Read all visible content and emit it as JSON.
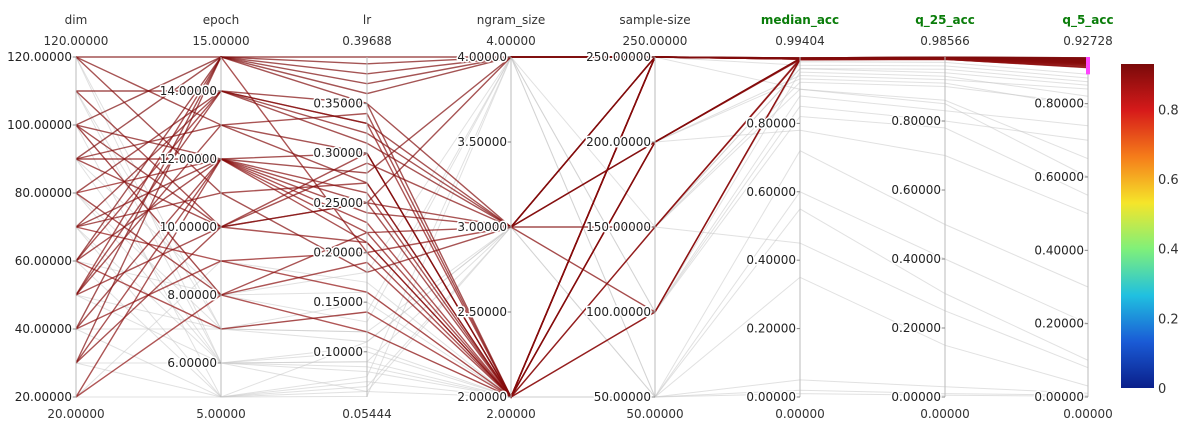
{
  "chart_data": {
    "type": "parallel_coordinates",
    "dimensions": [
      {
        "label": "dim",
        "highlight": false,
        "range_min": "20.00000",
        "range_max": "120.00000",
        "min": 20,
        "max": 120,
        "ticks": [
          {
            "v": 20,
            "t": "20.00000"
          },
          {
            "v": 40,
            "t": "40.00000"
          },
          {
            "v": 60,
            "t": "60.00000"
          },
          {
            "v": 80,
            "t": "80.00000"
          },
          {
            "v": 100,
            "t": "100.00000"
          },
          {
            "v": 120,
            "t": "120.00000"
          }
        ],
        "tick_side": "left"
      },
      {
        "label": "epoch",
        "highlight": false,
        "range_min": "5.00000",
        "range_max": "15.00000",
        "min": 5,
        "max": 15,
        "ticks": [
          {
            "v": 6,
            "t": "6.00000"
          },
          {
            "v": 8,
            "t": "8.00000"
          },
          {
            "v": 10,
            "t": "10.00000"
          },
          {
            "v": 12,
            "t": "12.00000"
          },
          {
            "v": 14,
            "t": "14.00000"
          }
        ],
        "tick_side": "left"
      },
      {
        "label": "lr",
        "highlight": false,
        "range_min": "0.05444",
        "range_max": "0.39688",
        "min": 0.05444,
        "max": 0.39688,
        "ticks": [
          {
            "v": 0.1,
            "t": "0.10000"
          },
          {
            "v": 0.15,
            "t": "0.15000"
          },
          {
            "v": 0.2,
            "t": "0.20000"
          },
          {
            "v": 0.25,
            "t": "0.25000"
          },
          {
            "v": 0.3,
            "t": "0.30000"
          },
          {
            "v": 0.35,
            "t": "0.35000"
          }
        ],
        "tick_side": "left"
      },
      {
        "label": "ngram_size",
        "highlight": false,
        "range_min": "2.00000",
        "range_max": "4.00000",
        "min": 2,
        "max": 4,
        "ticks": [
          {
            "v": 2,
            "t": "2.00000"
          },
          {
            "v": 2.5,
            "t": "2.50000"
          },
          {
            "v": 3,
            "t": "3.00000"
          },
          {
            "v": 3.5,
            "t": "3.50000"
          },
          {
            "v": 4,
            "t": "4.00000"
          }
        ],
        "tick_side": "left"
      },
      {
        "label": "sample-size",
        "highlight": false,
        "range_min": "50.00000",
        "range_max": "250.00000",
        "min": 50,
        "max": 250,
        "ticks": [
          {
            "v": 50,
            "t": "50.00000"
          },
          {
            "v": 100,
            "t": "100.00000"
          },
          {
            "v": 150,
            "t": "150.00000"
          },
          {
            "v": 200,
            "t": "200.00000"
          },
          {
            "v": 250,
            "t": "250.00000"
          }
        ],
        "tick_side": "left"
      },
      {
        "label": "median_acc",
        "highlight": true,
        "range_min": "0.00000",
        "range_max": "0.99404",
        "min": 0,
        "max": 0.99404,
        "ticks": [
          {
            "v": 0,
            "t": "0.00000"
          },
          {
            "v": 0.2,
            "t": "0.20000"
          },
          {
            "v": 0.4,
            "t": "0.40000"
          },
          {
            "v": 0.6,
            "t": "0.60000"
          },
          {
            "v": 0.8,
            "t": "0.80000"
          }
        ],
        "tick_side": "left"
      },
      {
        "label": "q_25_acc",
        "highlight": true,
        "range_min": "0.00000",
        "range_max": "0.98566",
        "min": 0,
        "max": 0.98566,
        "ticks": [
          {
            "v": 0,
            "t": "0.00000"
          },
          {
            "v": 0.2,
            "t": "0.20000"
          },
          {
            "v": 0.4,
            "t": "0.40000"
          },
          {
            "v": 0.6,
            "t": "0.60000"
          },
          {
            "v": 0.8,
            "t": "0.80000"
          }
        ],
        "tick_side": "left"
      },
      {
        "label": "q_5_acc",
        "highlight": true,
        "range_min": "0.00000",
        "range_max": "0.92728",
        "min": 0,
        "max": 0.92728,
        "ticks": [
          {
            "v": 0,
            "t": "0.00000"
          },
          {
            "v": 0.2,
            "t": "0.20000"
          },
          {
            "v": 0.4,
            "t": "0.40000"
          },
          {
            "v": 0.6,
            "t": "0.60000"
          },
          {
            "v": 0.8,
            "t": "0.80000"
          }
        ],
        "tick_side": "left"
      }
    ],
    "constraint": {
      "dimension": "q_5_acc",
      "range": [
        0.88,
        0.92728
      ],
      "color": "#ff44ff"
    },
    "colorscale": {
      "range": [
        0,
        0.93
      ],
      "ticks": [
        {
          "v": 0,
          "t": "0"
        },
        {
          "v": 0.2,
          "t": "0.2"
        },
        {
          "v": 0.4,
          "t": "0.4"
        },
        {
          "v": 0.6,
          "t": "0.6"
        },
        {
          "v": 0.8,
          "t": "0.8"
        }
      ],
      "stops": [
        "#0a1f8a",
        "#1a5bd6",
        "#20c0e0",
        "#7ff07a",
        "#f5e52a",
        "#f57c1a",
        "#d61a1a",
        "#7a0a0a"
      ]
    },
    "unselected_color": "#c8c8c8",
    "lines_selected": [
      [
        120,
        15,
        0.3969,
        4,
        250,
        0.99,
        0.985,
        0.925
      ],
      [
        110,
        14,
        0.35,
        3,
        250,
        0.99,
        0.984,
        0.92
      ],
      [
        100,
        12,
        0.3,
        2,
        250,
        0.989,
        0.983,
        0.918
      ],
      [
        90,
        10,
        0.25,
        2,
        200,
        0.988,
        0.982,
        0.915
      ],
      [
        80,
        8,
        0.22,
        3,
        150,
        0.989,
        0.982,
        0.912
      ],
      [
        70,
        12,
        0.28,
        4,
        250,
        0.99,
        0.984,
        0.921
      ],
      [
        60,
        14,
        0.33,
        2,
        100,
        0.987,
        0.98,
        0.905
      ],
      [
        50,
        15,
        0.2,
        2,
        250,
        0.988,
        0.981,
        0.91
      ],
      [
        40,
        12,
        0.25,
        3,
        200,
        0.989,
        0.983,
        0.916
      ],
      [
        30,
        10,
        0.3,
        2,
        250,
        0.988,
        0.982,
        0.913
      ],
      [
        20,
        8,
        0.12,
        2,
        150,
        0.986,
        0.979,
        0.9
      ],
      [
        120,
        11,
        0.18,
        3,
        250,
        0.99,
        0.984,
        0.92
      ],
      [
        100,
        15,
        0.36,
        4,
        250,
        0.991,
        0.985,
        0.924
      ],
      [
        90,
        13,
        0.27,
        2,
        200,
        0.989,
        0.983,
        0.917
      ],
      [
        80,
        14,
        0.32,
        3,
        250,
        0.99,
        0.984,
        0.919
      ],
      [
        70,
        9,
        0.16,
        2,
        100,
        0.986,
        0.979,
        0.898
      ],
      [
        60,
        12,
        0.24,
        3,
        250,
        0.989,
        0.982,
        0.914
      ],
      [
        50,
        10,
        0.21,
        2,
        200,
        0.988,
        0.981,
        0.908
      ],
      [
        40,
        15,
        0.38,
        4,
        250,
        0.991,
        0.985,
        0.923
      ],
      [
        30,
        12,
        0.26,
        2,
        250,
        0.988,
        0.982,
        0.911
      ],
      [
        110,
        10,
        0.29,
        3,
        200,
        0.989,
        0.983,
        0.915
      ],
      [
        100,
        8,
        0.19,
        2,
        250,
        0.988,
        0.981,
        0.907
      ],
      [
        90,
        15,
        0.37,
        4,
        250,
        0.991,
        0.985,
        0.925
      ],
      [
        80,
        12,
        0.23,
        2,
        150,
        0.987,
        0.98,
        0.903
      ],
      [
        70,
        14,
        0.31,
        3,
        250,
        0.99,
        0.984,
        0.918
      ],
      [
        60,
        7,
        0.14,
        2,
        200,
        0.986,
        0.979,
        0.899
      ],
      [
        50,
        13,
        0.34,
        2,
        250,
        0.989,
        0.983,
        0.916
      ],
      [
        40,
        9,
        0.2,
        3,
        100,
        0.987,
        0.98,
        0.904
      ],
      [
        20,
        12,
        0.22,
        2,
        250,
        0.988,
        0.981,
        0.909
      ],
      [
        120,
        13,
        0.3,
        2,
        200,
        0.99,
        0.984,
        0.919
      ],
      [
        100,
        10,
        0.25,
        4,
        250,
        0.99,
        0.984,
        0.92
      ],
      [
        70,
        11,
        0.27,
        2,
        250,
        0.989,
        0.982,
        0.912
      ],
      [
        50,
        14,
        0.33,
        3,
        200,
        0.989,
        0.983,
        0.917
      ],
      [
        30,
        15,
        0.35,
        2,
        250,
        0.99,
        0.984,
        0.921
      ],
      [
        90,
        12,
        0.21,
        2,
        250,
        0.988,
        0.981,
        0.91
      ],
      [
        60,
        15,
        0.39,
        4,
        250,
        0.991,
        0.985,
        0.924
      ]
    ],
    "lines_unselected": [
      [
        20,
        5,
        0.07,
        2,
        50,
        0.02,
        0.01,
        0.005
      ],
      [
        30,
        6,
        0.09,
        2,
        100,
        0.82,
        0.78,
        0.55
      ],
      [
        40,
        5,
        0.11,
        3,
        50,
        0.6,
        0.4,
        0.2
      ],
      [
        50,
        6,
        0.06,
        2,
        150,
        0.9,
        0.85,
        0.6
      ],
      [
        60,
        8,
        0.13,
        4,
        50,
        0.35,
        0.15,
        0.03
      ],
      [
        70,
        6,
        0.08,
        2,
        50,
        0.01,
        0.005,
        0.002
      ],
      [
        80,
        7,
        0.12,
        3,
        100,
        0.85,
        0.8,
        0.7
      ],
      [
        90,
        6,
        0.1,
        2,
        150,
        0.92,
        0.9,
        0.8
      ],
      [
        100,
        5,
        0.055,
        4,
        50,
        0.55,
        0.3,
        0.1
      ],
      [
        110,
        7,
        0.15,
        2,
        100,
        0.95,
        0.93,
        0.82
      ],
      [
        120,
        6,
        0.09,
        3,
        50,
        0.05,
        0.03,
        0.01
      ],
      [
        20,
        9,
        0.17,
        2,
        150,
        0.96,
        0.95,
        0.86
      ],
      [
        40,
        7,
        0.14,
        4,
        100,
        0.88,
        0.83,
        0.74
      ],
      [
        60,
        5,
        0.065,
        3,
        200,
        0.93,
        0.91,
        0.79
      ],
      [
        80,
        6,
        0.105,
        2,
        50,
        0.72,
        0.5,
        0.3
      ],
      [
        100,
        8,
        0.16,
        2,
        250,
        0.97,
        0.96,
        0.87
      ],
      [
        30,
        5,
        0.075,
        4,
        150,
        0.45,
        0.25,
        0.08
      ],
      [
        50,
        7,
        0.12,
        2,
        200,
        0.94,
        0.92,
        0.84
      ],
      [
        70,
        5,
        0.06,
        3,
        250,
        0.9,
        0.86,
        0.65
      ],
      [
        90,
        8,
        0.18,
        4,
        100,
        0.98,
        0.97,
        0.88
      ],
      [
        110,
        6,
        0.085,
        2,
        200,
        0.78,
        0.7,
        0.5
      ],
      [
        120,
        7,
        0.11,
        3,
        150,
        0.96,
        0.94,
        0.85
      ]
    ]
  }
}
